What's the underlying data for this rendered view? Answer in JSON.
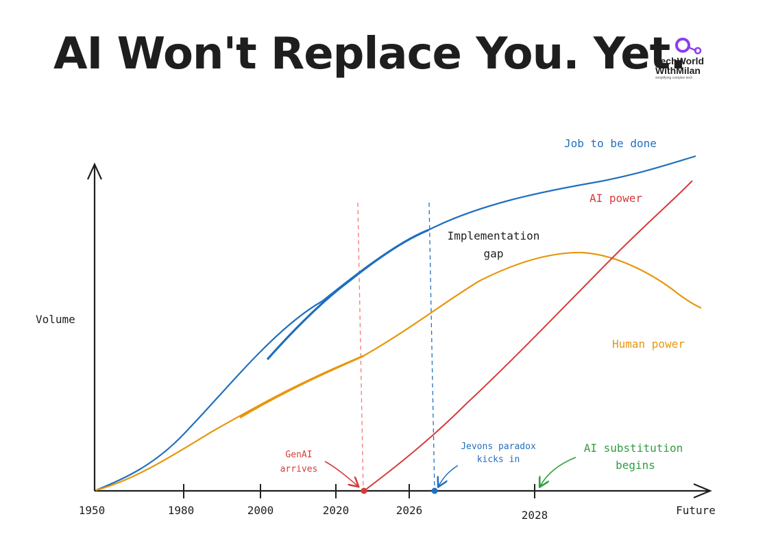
{
  "title": "AI Won't Replace You. Yet.",
  "logo": {
    "line1": "TechWorld",
    "line2": "WithMilan",
    "tagline": "simplifying complex tech",
    "accent": "#8b3cf0"
  },
  "chart_data": {
    "type": "line",
    "title": "AI Won't Replace You. Yet.",
    "ylabel": "Volume",
    "xlabel": "",
    "x_ticks": [
      "1950",
      "1980",
      "2000",
      "2020",
      "2026",
      "2028",
      "Future"
    ],
    "series": [
      {
        "name": "Job to be done",
        "color": "#1f6fbf"
      },
      {
        "name": "AI power",
        "color": "#d63a3a"
      },
      {
        "name": "Human power",
        "color": "#e8960c"
      }
    ],
    "annotations": [
      {
        "text": [
          "GenAI",
          "arrives"
        ],
        "color": "#d63a3a"
      },
      {
        "text": [
          "Jevons paradox",
          "kicks in"
        ],
        "color": "#1f6fbf"
      },
      {
        "text": [
          "AI substitution",
          "begins"
        ],
        "color": "#2e9e3f"
      },
      {
        "text": [
          "Implementation",
          "gap"
        ],
        "color": "#1e1e1e"
      }
    ],
    "grid": false,
    "legend": "inline"
  }
}
